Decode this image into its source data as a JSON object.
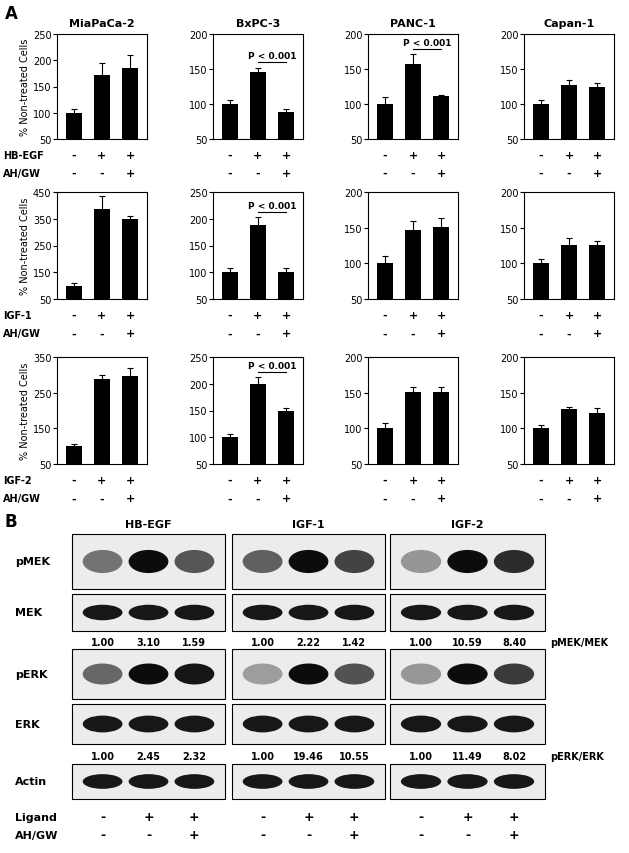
{
  "panel_label": "A",
  "chart_data": [
    {
      "type": "bar",
      "title": "MiaPaCa-2",
      "ylabel": "% Non-treated Cells",
      "categories": [
        null,
        null,
        null
      ],
      "values": [
        100,
        172,
        185
      ],
      "errors": [
        8,
        22,
        25
      ],
      "ylim": [
        50,
        250
      ],
      "yticks": [
        50,
        100,
        150,
        200,
        250
      ],
      "color": "#000000",
      "tick_labels": "y",
      "treatments": [
        {
          "name": "HB-EGF",
          "signs": [
            "-",
            "+",
            "+"
          ]
        },
        {
          "name": "AH/GW",
          "signs": [
            "-",
            "-",
            "+"
          ]
        }
      ]
    },
    {
      "type": "bar",
      "title": "BxPC-3",
      "categories": [
        null,
        null,
        null
      ],
      "values": [
        100,
        145,
        88
      ],
      "errors": [
        6,
        7,
        5
      ],
      "ylim": [
        50,
        200
      ],
      "yticks": [
        50,
        100,
        150,
        200
      ],
      "color": "#000000",
      "tick_labels": "y",
      "treatments": [
        {
          "signs": [
            "-",
            "+",
            "+"
          ]
        },
        {
          "signs": [
            "-",
            "-",
            "+"
          ]
        }
      ],
      "annotations": [
        {
          "text": "P < 0.001",
          "from": 1,
          "to": 2
        }
      ]
    },
    {
      "type": "bar",
      "title": "PANC-1",
      "categories": [
        null,
        null,
        null
      ],
      "values": [
        100,
        157,
        111
      ],
      "errors": [
        10,
        14,
        2
      ],
      "ylim": [
        50,
        200
      ],
      "yticks": [
        50,
        100,
        150,
        200
      ],
      "color": "#000000",
      "tick_labels": "y",
      "treatments": [
        {
          "signs": [
            "-",
            "+",
            "+"
          ]
        },
        {
          "signs": [
            "-",
            "-",
            "+"
          ]
        }
      ],
      "annotations": [
        {
          "text": "P < 0.001",
          "from": 1,
          "to": 2
        }
      ]
    },
    {
      "type": "bar",
      "title": "Capan-1",
      "categories": [
        null,
        null,
        null
      ],
      "values": [
        100,
        127,
        125
      ],
      "errors": [
        6,
        7,
        5
      ],
      "ylim": [
        50,
        200
      ],
      "yticks": [
        50,
        100,
        150,
        200
      ],
      "color": "#000000",
      "tick_labels": "y",
      "treatments": [
        {
          "signs": [
            "-",
            "+",
            "+"
          ]
        },
        {
          "signs": [
            "-",
            "-",
            "+"
          ]
        }
      ]
    },
    {
      "type": "bar",
      "ylabel": "% Non-treated Cells",
      "categories": [
        null,
        null,
        null
      ],
      "values": [
        100,
        385,
        348
      ],
      "errors": [
        10,
        50,
        12
      ],
      "ylim": [
        50,
        450
      ],
      "yticks": [
        50,
        150,
        250,
        350,
        450
      ],
      "color": "#000000",
      "tick_labels": "y",
      "treatments": [
        {
          "name": "IGF-1",
          "signs": [
            "-",
            "+",
            "+"
          ]
        },
        {
          "name": "AH/GW",
          "signs": [
            "-",
            "-",
            "+"
          ]
        }
      ]
    },
    {
      "type": "bar",
      "categories": [
        null,
        null,
        null
      ],
      "values": [
        100,
        188,
        101
      ],
      "errors": [
        8,
        15,
        7
      ],
      "ylim": [
        50,
        250
      ],
      "yticks": [
        50,
        100,
        150,
        200,
        250
      ],
      "color": "#000000",
      "tick_labels": "y",
      "treatments": [
        {
          "signs": [
            "-",
            "+",
            "+"
          ]
        },
        {
          "signs": [
            "-",
            "-",
            "+"
          ]
        }
      ],
      "annotations": [
        {
          "text": "P < 0.001",
          "from": 1,
          "to": 2
        }
      ]
    },
    {
      "type": "bar",
      "categories": [
        null,
        null,
        null
      ],
      "values": [
        100,
        147,
        151
      ],
      "errors": [
        10,
        13,
        12
      ],
      "ylim": [
        50,
        200
      ],
      "yticks": [
        50,
        100,
        150,
        200
      ],
      "color": "#000000",
      "tick_labels": "y",
      "treatments": [
        {
          "signs": [
            "-",
            "+",
            "+"
          ]
        },
        {
          "signs": [
            "-",
            "-",
            "+"
          ]
        }
      ]
    },
    {
      "type": "bar",
      "categories": [
        null,
        null,
        null
      ],
      "values": [
        100,
        125,
        125
      ],
      "errors": [
        6,
        10,
        6
      ],
      "ylim": [
        50,
        200
      ],
      "yticks": [
        50,
        100,
        150,
        200
      ],
      "color": "#000000",
      "tick_labels": "y",
      "treatments": [
        {
          "signs": [
            "-",
            "+",
            "+"
          ]
        },
        {
          "signs": [
            "-",
            "-",
            "+"
          ]
        }
      ]
    },
    {
      "type": "bar",
      "ylabel": "% Non-treated Cells",
      "categories": [
        null,
        null,
        null
      ],
      "values": [
        100,
        288,
        297
      ],
      "errors": [
        5,
        12,
        22
      ],
      "ylim": [
        50,
        350
      ],
      "yticks": [
        50,
        150,
        250,
        350
      ],
      "color": "#000000",
      "tick_labels": "y",
      "treatments": [
        {
          "name": "IGF-2",
          "signs": [
            "-",
            "+",
            "+"
          ]
        },
        {
          "name": "AH/GW",
          "signs": [
            "-",
            "-",
            "+"
          ]
        }
      ]
    },
    {
      "type": "bar",
      "categories": [
        null,
        null,
        null
      ],
      "values": [
        100,
        200,
        150
      ],
      "errors": [
        7,
        12,
        4
      ],
      "ylim": [
        50,
        250
      ],
      "yticks": [
        50,
        100,
        150,
        200,
        250
      ],
      "color": "#000000",
      "tick_labels": "y",
      "treatments": [
        {
          "signs": [
            "-",
            "+",
            "+"
          ]
        },
        {
          "signs": [
            "-",
            "-",
            "+"
          ]
        }
      ],
      "annotations": [
        {
          "text": "P < 0.001",
          "from": 1,
          "to": 2
        }
      ]
    },
    {
      "type": "bar",
      "categories": [
        null,
        null,
        null
      ],
      "values": [
        100,
        151,
        151
      ],
      "errors": [
        8,
        7,
        7
      ],
      "ylim": [
        50,
        200
      ],
      "yticks": [
        50,
        100,
        150,
        200
      ],
      "color": "#000000",
      "tick_labels": "y",
      "treatments": [
        {
          "signs": [
            "-",
            "+",
            "+"
          ]
        },
        {
          "signs": [
            "-",
            "-",
            "+"
          ]
        }
      ]
    },
    {
      "type": "bar",
      "categories": [
        null,
        null,
        null
      ],
      "values": [
        100,
        127,
        122
      ],
      "errors": [
        5,
        3,
        6
      ],
      "ylim": [
        50,
        200
      ],
      "yticks": [
        50,
        100,
        150,
        200
      ],
      "color": "#000000",
      "tick_labels": "y",
      "treatments": [
        {
          "signs": [
            "-",
            "+",
            "+"
          ]
        },
        {
          "signs": [
            "-",
            "-",
            "+"
          ]
        }
      ]
    }
  ],
  "blot": {
    "label": "B",
    "rows": [
      {
        "name": "pMEK"
      },
      {
        "name": "MEK",
        "ratio": "pMEK/MEK"
      },
      {
        "name": "pERK"
      },
      {
        "name": "ERK",
        "ratio": "pERK/ERK"
      },
      {
        "name": "Actin"
      }
    ],
    "groups": [
      {
        "title": "HB-EGF",
        "ratios": [
          {
            "values": [
              1.0,
              3.1,
              1.59
            ],
            "value_labels": [
              "1.00",
              "3.10",
              "1.59"
            ]
          },
          {
            "values": [
              1.0,
              2.45,
              2.32
            ],
            "value_labels": [
              "1.00",
              "2.45",
              "2.32"
            ]
          }
        ]
      },
      {
        "title": "IGF-1",
        "ratios": [
          {
            "values": [
              1.0,
              2.22,
              1.42
            ],
            "value_labels": [
              "1.00",
              "2.22",
              "1.42"
            ]
          },
          {
            "values": [
              1.0,
              19.46,
              10.55
            ],
            "value_labels": [
              "1.00",
              "19.46",
              "10.55"
            ]
          }
        ]
      },
      {
        "title": "IGF-2",
        "ratios": [
          {
            "values": [
              1.0,
              10.59,
              8.4
            ],
            "value_labels": [
              "1.00",
              "10.59",
              "8.40"
            ]
          },
          {
            "values": [
              1.0,
              11.49,
              8.02
            ],
            "value_labels": [
              "1.00",
              "11.49",
              "8.02"
            ]
          }
        ]
      }
    ],
    "treatments": [
      {
        "name": "Ligand",
        "signs": [
          "-",
          "+",
          "+"
        ]
      },
      {
        "name": "AH/GW",
        "signs": [
          "-",
          "-",
          "+"
        ]
      }
    ]
  }
}
